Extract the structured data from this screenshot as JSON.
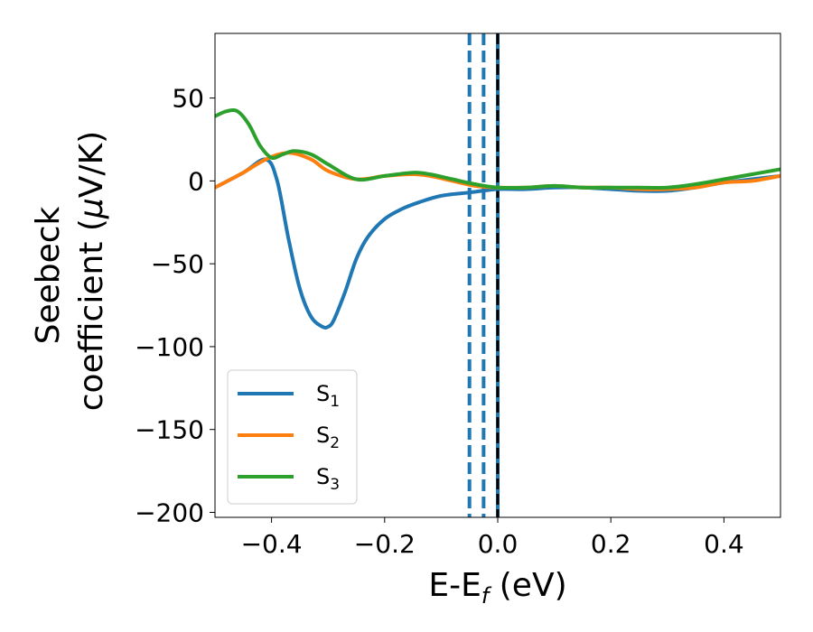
{
  "chart_data": {
    "type": "line",
    "xlabel_main": "E-E",
    "xlabel_sub": "f",
    "xlabel_unit": " (eV)",
    "ylabel_line1": "Seebeck",
    "ylabel_line2_text": "coefficient  (",
    "ylabel_line2_mu": "μ",
    "ylabel_line2_unit": "V/K)",
    "xlim": [
      -0.5,
      0.5
    ],
    "ylim": [
      -203,
      89
    ],
    "xticks": [
      -0.4,
      -0.2,
      0.0,
      0.2,
      0.4
    ],
    "xtick_labels": [
      "−0.4",
      "−0.2",
      "0.0",
      "0.2",
      "0.4"
    ],
    "yticks": [
      50,
      0,
      -50,
      -100,
      -150,
      -200
    ],
    "ytick_labels": [
      "50",
      "0",
      "−50",
      "−100",
      "−150",
      "−200"
    ],
    "grid": false,
    "legend_position": "lower-left",
    "series": [
      {
        "name": "S",
        "sub": "1",
        "color": "#1f77b4",
        "x": [
          -0.5,
          -0.45,
          -0.41,
          -0.39,
          -0.37,
          -0.35,
          -0.33,
          -0.31,
          -0.3,
          -0.29,
          -0.27,
          -0.25,
          -0.23,
          -0.2,
          -0.17,
          -0.14,
          -0.1,
          -0.05,
          0.0,
          0.05,
          0.1,
          0.15,
          0.2,
          0.25,
          0.3,
          0.35,
          0.4,
          0.45,
          0.5
        ],
        "y": [
          -4,
          5,
          13,
          0,
          -35,
          -65,
          -82,
          -88,
          -88,
          -84,
          -67,
          -47,
          -34,
          -23,
          -17,
          -13,
          -9,
          -7,
          -5,
          -5,
          -4,
          -4,
          -5,
          -6,
          -6,
          -4,
          -1,
          1,
          3
        ]
      },
      {
        "name": "S",
        "sub": "2",
        "color": "#ff7f0e",
        "x": [
          -0.5,
          -0.45,
          -0.41,
          -0.37,
          -0.33,
          -0.3,
          -0.25,
          -0.2,
          -0.15,
          -0.12,
          -0.08,
          -0.04,
          0.0,
          0.05,
          0.1,
          0.15,
          0.2,
          0.25,
          0.3,
          0.35,
          0.4,
          0.45,
          0.5
        ],
        "y": [
          -4,
          5,
          13,
          17,
          13,
          6,
          1,
          3,
          4,
          3,
          0,
          -3,
          -4,
          -4,
          -3,
          -4,
          -4,
          -5,
          -5,
          -4,
          -1,
          0,
          3
        ]
      },
      {
        "name": "S",
        "sub": "3",
        "color": "#2ca02c",
        "x": [
          -0.5,
          -0.48,
          -0.46,
          -0.44,
          -0.42,
          -0.4,
          -0.38,
          -0.36,
          -0.33,
          -0.3,
          -0.25,
          -0.2,
          -0.15,
          -0.12,
          -0.08,
          -0.04,
          0.0,
          0.05,
          0.1,
          0.15,
          0.2,
          0.25,
          0.3,
          0.35,
          0.4,
          0.45,
          0.5
        ],
        "y": [
          39,
          42,
          42,
          34,
          21,
          14,
          16,
          18,
          16,
          10,
          1,
          3,
          5,
          4,
          1,
          -2,
          -4,
          -4,
          -3,
          -4,
          -4,
          -4,
          -4,
          -2,
          1,
          4,
          7
        ]
      }
    ],
    "vlines": [
      {
        "x": -0.05,
        "color": "#1f77b4",
        "style": "dashed"
      },
      {
        "x": -0.025,
        "color": "#1f77b4",
        "style": "dashed"
      },
      {
        "x": 0.0,
        "color": "#000000",
        "style": "dashed-overlay"
      }
    ]
  }
}
